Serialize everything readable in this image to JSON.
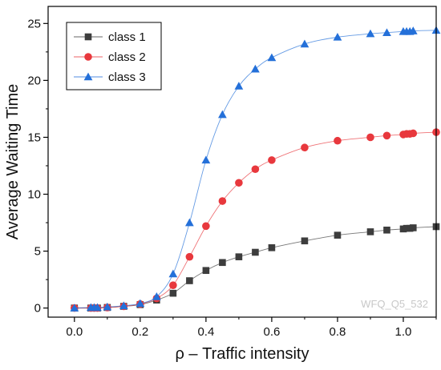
{
  "chart_data": {
    "type": "line",
    "xlabel": "ρ – Traffic intensity",
    "ylabel": "Average Waiting Time",
    "xlim": [
      -0.08,
      1.1
    ],
    "ylim": [
      -0.8,
      26.5
    ],
    "xticks": [
      "0.0",
      "0.2",
      "0.4",
      "0.6",
      "0.8",
      "1.0"
    ],
    "yticks": [
      "0",
      "5",
      "10",
      "15",
      "20",
      "25"
    ],
    "legend_position": "top-left",
    "watermark": "WFQ_Q5_532",
    "series": [
      {
        "name": "class 1",
        "color": "#3d3d3d",
        "marker": "square",
        "x": [
          0.0,
          0.05,
          0.06,
          0.07,
          0.1,
          0.15,
          0.2,
          0.25,
          0.3,
          0.35,
          0.4,
          0.45,
          0.5,
          0.55,
          0.6,
          0.7,
          0.8,
          0.9,
          0.95,
          1.0,
          1.01,
          1.02,
          1.03,
          1.1
        ],
        "y": [
          0.0,
          0.0,
          0.0,
          0.0,
          0.05,
          0.15,
          0.3,
          0.7,
          1.3,
          2.4,
          3.3,
          4.0,
          4.5,
          4.9,
          5.3,
          5.9,
          6.4,
          6.7,
          6.85,
          6.95,
          7.0,
          7.0,
          7.05,
          7.15
        ]
      },
      {
        "name": "class 2",
        "color": "#e8383d",
        "marker": "circle",
        "x": [
          0.0,
          0.05,
          0.06,
          0.07,
          0.1,
          0.15,
          0.2,
          0.25,
          0.3,
          0.35,
          0.4,
          0.45,
          0.5,
          0.55,
          0.6,
          0.7,
          0.8,
          0.9,
          0.95,
          1.0,
          1.01,
          1.02,
          1.03,
          1.1
        ],
        "y": [
          0.0,
          0.0,
          0.0,
          0.0,
          0.05,
          0.15,
          0.35,
          0.85,
          2.0,
          4.5,
          7.2,
          9.4,
          11.0,
          12.2,
          13.0,
          14.1,
          14.7,
          15.0,
          15.15,
          15.25,
          15.3,
          15.3,
          15.35,
          15.45
        ]
      },
      {
        "name": "class 3",
        "color": "#2470d9",
        "marker": "triangle",
        "x": [
          0.0,
          0.05,
          0.06,
          0.07,
          0.1,
          0.15,
          0.2,
          0.25,
          0.3,
          0.35,
          0.4,
          0.45,
          0.5,
          0.55,
          0.6,
          0.7,
          0.8,
          0.9,
          0.95,
          1.0,
          1.01,
          1.02,
          1.03,
          1.1
        ],
        "y": [
          0.0,
          0.05,
          0.05,
          0.05,
          0.1,
          0.2,
          0.4,
          1.0,
          3.0,
          7.5,
          13.0,
          17.0,
          19.5,
          21.0,
          22.0,
          23.2,
          23.8,
          24.1,
          24.2,
          24.3,
          24.3,
          24.3,
          24.35,
          24.4
        ]
      }
    ]
  }
}
